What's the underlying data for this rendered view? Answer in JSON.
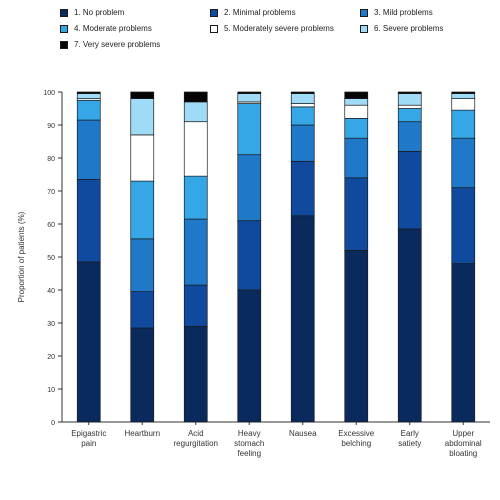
{
  "chart_data": {
    "type": "bar",
    "stacked": true,
    "ylabel": "Proportion of patients (%)",
    "xlabel": "",
    "ylim": [
      0,
      100
    ],
    "yticks": [
      0,
      10,
      20,
      30,
      40,
      50,
      60,
      70,
      80,
      90,
      100
    ],
    "grid": false,
    "legend_position": "top",
    "categories": [
      "Epigastric pain",
      "Heartburn",
      "Acid regurgitation",
      "Heavy stomach feeling",
      "Nausea",
      "Excessive belching",
      "Early satiety",
      "Upper abdominal bloating"
    ],
    "series": [
      {
        "name": "1. No problem",
        "color": "#0a2a5e",
        "values": [
          48.5,
          28.5,
          29,
          40,
          62.5,
          52,
          58.5,
          48
        ]
      },
      {
        "name": "2. Minimal problems",
        "color": "#0f4a9e",
        "values": [
          25,
          11,
          12.5,
          21,
          16.5,
          22,
          23.5,
          23
        ]
      },
      {
        "name": "3. Mild problems",
        "color": "#1f78c8",
        "values": [
          18,
          16,
          20,
          20,
          11,
          12,
          9,
          15
        ]
      },
      {
        "name": "4. Moderate problems",
        "color": "#35a7e6",
        "values": [
          6,
          17.5,
          13,
          15.5,
          5.5,
          6,
          4,
          8.5
        ]
      },
      {
        "name": "5. Moderately severe problems",
        "color": "#ffffff",
        "values": [
          0.5,
          14,
          16.5,
          0.5,
          1,
          4,
          1,
          3.5
        ]
      },
      {
        "name": "6. Severe problems",
        "color": "#9fdaf6",
        "values": [
          1.5,
          11,
          6,
          2.5,
          3,
          2,
          3.5,
          1.5
        ]
      },
      {
        "name": "7. Very severe problems",
        "color": "#050505",
        "values": [
          0.5,
          2,
          3,
          0.5,
          0.5,
          2,
          0.5,
          0.5
        ]
      }
    ]
  }
}
